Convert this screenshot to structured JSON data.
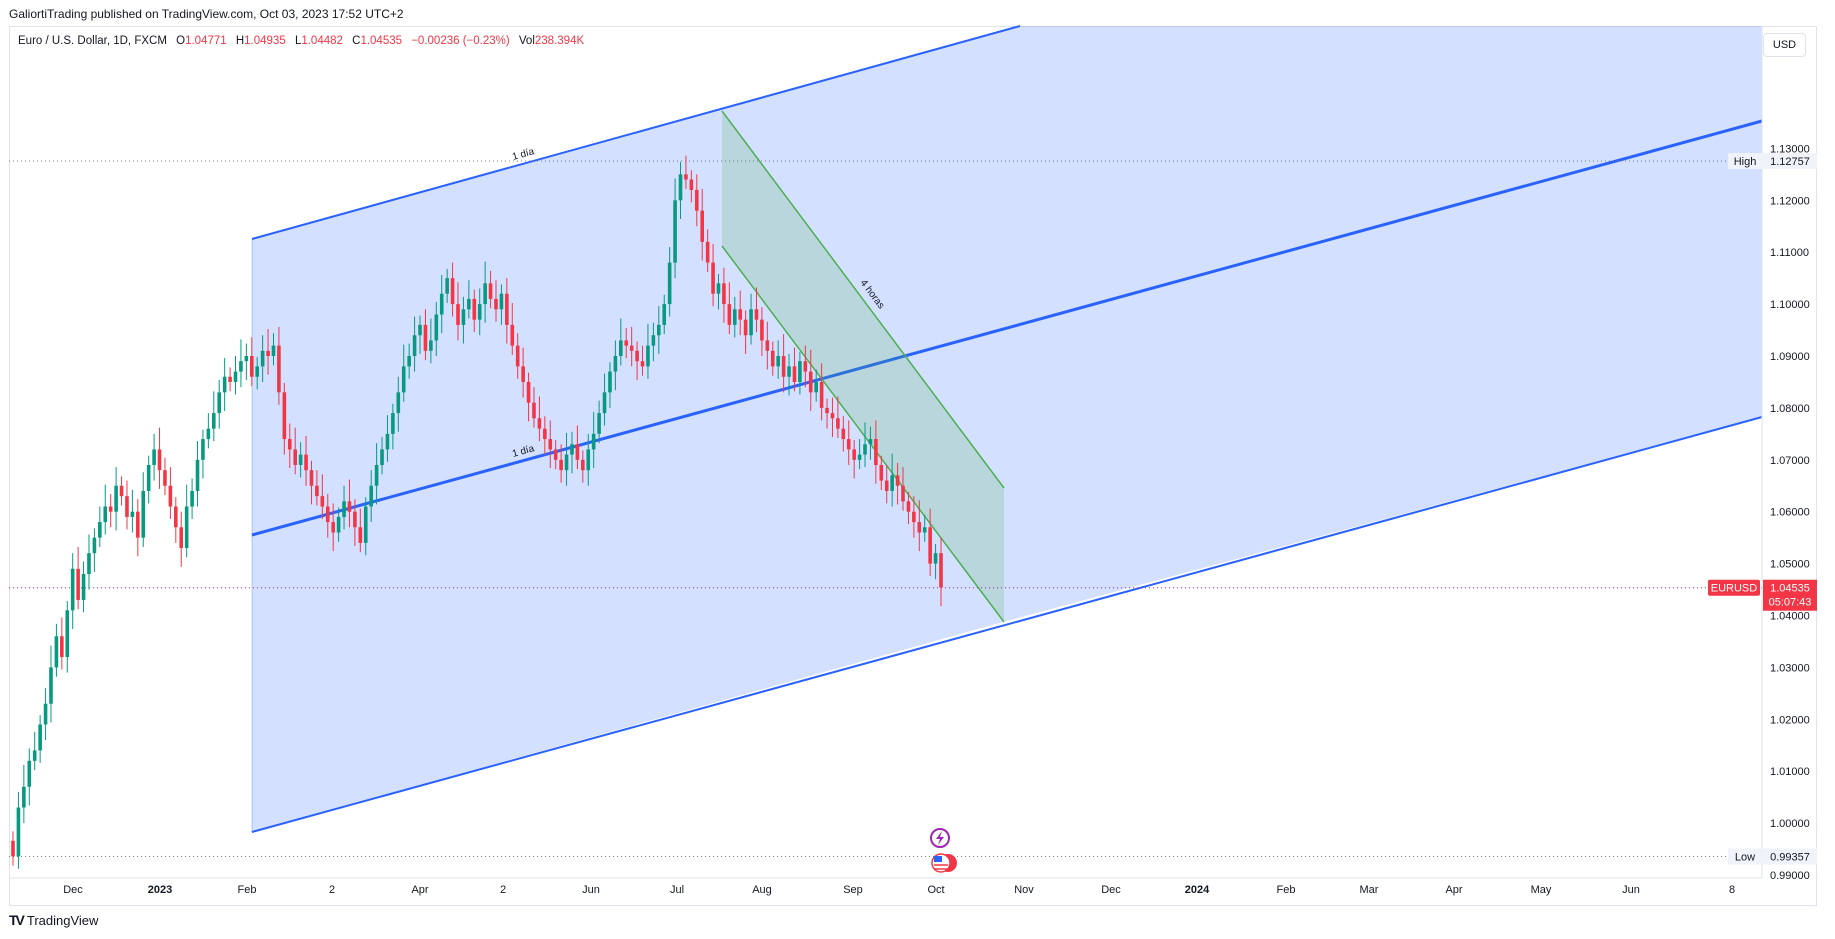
{
  "publisher": "GaliortiTrading published on TradingView.com, Oct 03, 2023 17:52 UTC+2",
  "legend": {
    "symbol": "Euro / U.S. Dollar, 1D, FXCM",
    "o_label": "O",
    "o": "1.04771",
    "h_label": "H",
    "h": "1.04935",
    "l_label": "L",
    "l": "1.04482",
    "c_label": "C",
    "c": "1.04535",
    "change": "−0.00236 (−0.23%)",
    "vol_label": "Vol",
    "vol": "238.394K"
  },
  "currency_button": "USD",
  "brand": "TradingView",
  "colors": {
    "up": "#089981",
    "down": "#f23645",
    "channel": "#2962ff",
    "green_channel": "#4caf50"
  },
  "chart_data": {
    "type": "candlestick",
    "symbol": "EURUSD",
    "ylim": [
      0.98,
      1.135
    ],
    "y_ticks": [
      "1.13000",
      "1.12000",
      "1.11000",
      "1.10000",
      "1.09000",
      "1.08000",
      "1.07000",
      "1.06000",
      "1.05000",
      "1.04000",
      "1.03000",
      "1.02000",
      "1.01000",
      "1.00000",
      "0.99000"
    ],
    "x_ticks": [
      "Dec",
      "2023",
      "Feb",
      "2",
      "Apr",
      "2",
      "Jun",
      "Jul",
      "Aug",
      "Sep",
      "Oct",
      "Nov",
      "Dec",
      "2024",
      "Feb",
      "Mar",
      "Apr",
      "May",
      "Jun",
      "8"
    ],
    "closes": [
      0.9936,
      1.003,
      1.007,
      1.012,
      1.014,
      1.019,
      1.023,
      1.03,
      1.036,
      1.032,
      1.041,
      1.049,
      1.043,
      1.048,
      1.052,
      1.055,
      1.058,
      1.061,
      1.06,
      1.065,
      1.063,
      1.059,
      1.06,
      1.055,
      1.064,
      1.069,
      1.072,
      1.068,
      1.065,
      1.061,
      1.057,
      1.053,
      1.061,
      1.064,
      1.07,
      1.074,
      1.076,
      1.079,
      1.083,
      1.086,
      1.085,
      1.087,
      1.089,
      1.09,
      1.086,
      1.088,
      1.091,
      1.09,
      1.092,
      1.083,
      1.074,
      1.072,
      1.069,
      1.071,
      1.068,
      1.065,
      1.063,
      1.061,
      1.058,
      1.056,
      1.059,
      1.062,
      1.06,
      1.057,
      1.054,
      1.061,
      1.065,
      1.069,
      1.072,
      1.075,
      1.079,
      1.083,
      1.088,
      1.09,
      1.094,
      1.096,
      1.091,
      1.093,
      1.098,
      1.102,
      1.105,
      1.1,
      1.096,
      1.099,
      1.101,
      1.097,
      1.1,
      1.104,
      1.101,
      1.099,
      1.102,
      1.096,
      1.092,
      1.088,
      1.085,
      1.081,
      1.078,
      1.076,
      1.074,
      1.072,
      1.07,
      1.068,
      1.071,
      1.073,
      1.07,
      1.068,
      1.072,
      1.075,
      1.079,
      1.083,
      1.087,
      1.09,
      1.093,
      1.092,
      1.091,
      1.089,
      1.088,
      1.092,
      1.094,
      1.096,
      1.1,
      1.108,
      1.12,
      1.125,
      1.124,
      1.122,
      1.118,
      1.112,
      1.108,
      1.102,
      1.104,
      1.1,
      1.096,
      1.099,
      1.097,
      1.094,
      1.099,
      1.097,
      1.093,
      1.091,
      1.088,
      1.09,
      1.086,
      1.088,
      1.085,
      1.089,
      1.087,
      1.083,
      1.085,
      1.08,
      1.079,
      1.078,
      1.076,
      1.074,
      1.072,
      1.07,
      1.071,
      1.073,
      1.074,
      1.069,
      1.066,
      1.064,
      1.067,
      1.065,
      1.062,
      1.06,
      1.058,
      1.056,
      1.057,
      1.05,
      1.052,
      1.0454
    ],
    "high": {
      "label": "High",
      "value": "1.12757"
    },
    "low": {
      "label": "Low",
      "value": "0.99357"
    },
    "last_price": {
      "symbol": "EURUSD",
      "value": "1.04535",
      "countdown": "05:07:43"
    },
    "annotations": [
      {
        "text": "1 día"
      },
      {
        "text": "1 día"
      },
      {
        "text": "4 horas"
      }
    ]
  }
}
